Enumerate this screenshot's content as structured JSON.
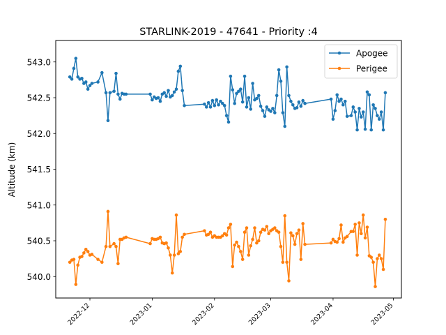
{
  "chart_data": {
    "type": "line",
    "title": "STARLINK-2019 - 47641 - Priority :4",
    "xlabel": "",
    "ylabel": "Altitude (km)",
    "x_type": "date",
    "xlim": [
      "2022-11-14",
      "2023-05-05"
    ],
    "ylim": [
      539.7,
      543.3
    ],
    "x_ticks": [
      "2022-12",
      "2023-01",
      "2023-02",
      "2023-03",
      "2023-04",
      "2023-05"
    ],
    "y_ticks": [
      540.0,
      540.5,
      541.0,
      541.5,
      542.0,
      542.5,
      543.0
    ],
    "y_tick_labels": [
      "540.0",
      "540.5",
      "541.0",
      "541.5",
      "542.0",
      "542.5",
      "543.0"
    ],
    "grid": false,
    "legend_position": "upper right",
    "series": [
      {
        "name": "Apogee",
        "color": "#1f77b4",
        "x": [
          "2022-11-21",
          "2022-11-22",
          "2022-11-23",
          "2022-11-24",
          "2022-11-25",
          "2022-11-26",
          "2022-11-27",
          "2022-11-28",
          "2022-11-29",
          "2022-11-30",
          "2022-12-01",
          "2022-12-02",
          "2022-12-05",
          "2022-12-07",
          "2022-12-09",
          "2022-12-10",
          "2022-12-11",
          "2022-12-13",
          "2022-12-14",
          "2022-12-15",
          "2022-12-16",
          "2022-12-17",
          "2022-12-18",
          "2022-12-19",
          "2022-12-31",
          "2023-01-01",
          "2023-01-02",
          "2023-01-03",
          "2023-01-04",
          "2023-01-05",
          "2023-01-06",
          "2023-01-07",
          "2023-01-08",
          "2023-01-09",
          "2023-01-10",
          "2023-01-11",
          "2023-01-12",
          "2023-01-13",
          "2023-01-14",
          "2023-01-15",
          "2023-01-16",
          "2023-01-17",
          "2023-01-27",
          "2023-01-28",
          "2023-01-29",
          "2023-01-30",
          "2023-01-31",
          "2023-02-01",
          "2023-02-02",
          "2023-02-03",
          "2023-02-04",
          "2023-02-05",
          "2023-02-06",
          "2023-02-07",
          "2023-02-08",
          "2023-02-09",
          "2023-02-10",
          "2023-02-11",
          "2023-02-12",
          "2023-02-13",
          "2023-02-14",
          "2023-02-15",
          "2023-02-16",
          "2023-02-17",
          "2023-02-18",
          "2023-02-19",
          "2023-02-20",
          "2023-02-21",
          "2023-02-22",
          "2023-02-23",
          "2023-02-24",
          "2023-02-25",
          "2023-02-26",
          "2023-02-27",
          "2023-02-28",
          "2023-03-01",
          "2023-03-02",
          "2023-03-03",
          "2023-03-04",
          "2023-03-05",
          "2023-03-06",
          "2023-03-07",
          "2023-03-08",
          "2023-03-09",
          "2023-03-10",
          "2023-03-11",
          "2023-03-12",
          "2023-03-13",
          "2023-03-14",
          "2023-03-15",
          "2023-03-16",
          "2023-03-17",
          "2023-03-18",
          "2023-03-31",
          "2023-04-01",
          "2023-04-02",
          "2023-04-03",
          "2023-04-04",
          "2023-04-05",
          "2023-04-06",
          "2023-04-07",
          "2023-04-08",
          "2023-04-10",
          "2023-04-11",
          "2023-04-12",
          "2023-04-13",
          "2023-04-14",
          "2023-04-15",
          "2023-04-16",
          "2023-04-17",
          "2023-04-18",
          "2023-04-19",
          "2023-04-20",
          "2023-04-21",
          "2023-04-22",
          "2023-04-23",
          "2023-04-24",
          "2023-04-25",
          "2023-04-26",
          "2023-04-27"
        ],
        "y": [
          542.79,
          542.76,
          542.91,
          543.05,
          542.79,
          542.76,
          542.77,
          542.7,
          542.72,
          542.62,
          542.67,
          542.7,
          542.72,
          542.85,
          542.57,
          542.18,
          542.57,
          542.59,
          542.84,
          542.55,
          542.48,
          542.56,
          542.55,
          542.55,
          542.55,
          542.47,
          542.51,
          542.49,
          542.5,
          542.45,
          542.55,
          542.57,
          542.52,
          542.6,
          542.51,
          542.53,
          542.58,
          542.62,
          542.87,
          542.94,
          542.6,
          542.39,
          542.41,
          542.37,
          542.43,
          542.37,
          542.46,
          542.39,
          542.47,
          542.4,
          542.45,
          542.42,
          542.39,
          542.25,
          542.16,
          542.8,
          542.61,
          542.42,
          542.56,
          542.59,
          542.62,
          542.44,
          542.8,
          542.37,
          542.5,
          542.34,
          542.7,
          542.47,
          542.49,
          542.53,
          542.38,
          542.32,
          542.24,
          542.37,
          542.33,
          542.31,
          542.35,
          542.29,
          542.53,
          542.89,
          542.73,
          542.29,
          542.1,
          542.93,
          542.53,
          542.45,
          542.4,
          542.35,
          542.36,
          542.44,
          542.38,
          542.46,
          542.42,
          542.48,
          542.2,
          542.32,
          542.54,
          542.45,
          542.48,
          542.4,
          542.45,
          542.24,
          542.25,
          542.37,
          542.3,
          542.05,
          542.35,
          542.23,
          542.3,
          542.06,
          542.58,
          542.54,
          542.05,
          542.4,
          542.35,
          542.25,
          542.2,
          542.3,
          542.05,
          542.57
        ]
      },
      {
        "name": "Perigee",
        "color": "#ff7f0e",
        "x": [
          "2022-11-21",
          "2022-11-22",
          "2022-11-23",
          "2022-11-24",
          "2022-11-25",
          "2022-11-26",
          "2022-11-27",
          "2022-11-28",
          "2022-11-29",
          "2022-11-30",
          "2022-12-01",
          "2022-12-02",
          "2022-12-05",
          "2022-12-07",
          "2022-12-09",
          "2022-12-10",
          "2022-12-11",
          "2022-12-13",
          "2022-12-14",
          "2022-12-15",
          "2022-12-16",
          "2022-12-17",
          "2022-12-18",
          "2022-12-19",
          "2022-12-31",
          "2023-01-01",
          "2023-01-02",
          "2023-01-03",
          "2023-01-04",
          "2023-01-05",
          "2023-01-06",
          "2023-01-07",
          "2023-01-08",
          "2023-01-09",
          "2023-01-10",
          "2023-01-11",
          "2023-01-12",
          "2023-01-13",
          "2023-01-14",
          "2023-01-15",
          "2023-01-16",
          "2023-01-17",
          "2023-01-27",
          "2023-01-28",
          "2023-01-29",
          "2023-01-30",
          "2023-01-31",
          "2023-02-01",
          "2023-02-02",
          "2023-02-03",
          "2023-02-04",
          "2023-02-05",
          "2023-02-06",
          "2023-02-07",
          "2023-02-08",
          "2023-02-09",
          "2023-02-10",
          "2023-02-11",
          "2023-02-12",
          "2023-02-13",
          "2023-02-14",
          "2023-02-15",
          "2023-02-16",
          "2023-02-17",
          "2023-02-18",
          "2023-02-19",
          "2023-02-20",
          "2023-02-21",
          "2023-02-22",
          "2023-02-23",
          "2023-02-24",
          "2023-02-25",
          "2023-02-26",
          "2023-02-27",
          "2023-02-28",
          "2023-03-01",
          "2023-03-02",
          "2023-03-03",
          "2023-03-04",
          "2023-03-05",
          "2023-03-06",
          "2023-03-07",
          "2023-03-08",
          "2023-03-09",
          "2023-03-10",
          "2023-03-11",
          "2023-03-12",
          "2023-03-13",
          "2023-03-14",
          "2023-03-15",
          "2023-03-16",
          "2023-03-17",
          "2023-03-18",
          "2023-03-31",
          "2023-04-01",
          "2023-04-02",
          "2023-04-03",
          "2023-04-04",
          "2023-04-05",
          "2023-04-06",
          "2023-04-07",
          "2023-04-08",
          "2023-04-10",
          "2023-04-11",
          "2023-04-12",
          "2023-04-13",
          "2023-04-14",
          "2023-04-15",
          "2023-04-16",
          "2023-04-17",
          "2023-04-18",
          "2023-04-19",
          "2023-04-20",
          "2023-04-21",
          "2023-04-22",
          "2023-04-23",
          "2023-04-24",
          "2023-04-25",
          "2023-04-26",
          "2023-04-27"
        ],
        "y": [
          540.2,
          540.23,
          540.24,
          539.89,
          540.16,
          540.27,
          540.28,
          540.33,
          540.38,
          540.35,
          540.3,
          540.31,
          540.24,
          540.2,
          540.42,
          540.91,
          540.42,
          540.46,
          540.42,
          540.18,
          540.52,
          540.52,
          540.54,
          540.55,
          540.46,
          540.53,
          540.52,
          540.52,
          540.53,
          540.55,
          540.47,
          540.46,
          540.47,
          540.4,
          540.3,
          540.05,
          540.3,
          540.86,
          540.32,
          540.35,
          540.55,
          540.59,
          540.64,
          540.58,
          540.59,
          540.62,
          540.55,
          540.57,
          540.55,
          540.55,
          540.55,
          540.57,
          540.6,
          540.58,
          540.68,
          540.73,
          540.14,
          540.44,
          540.48,
          540.42,
          540.35,
          540.24,
          540.62,
          540.68,
          540.3,
          540.43,
          540.52,
          540.68,
          540.47,
          540.5,
          540.62,
          540.66,
          540.65,
          540.7,
          540.6,
          540.64,
          540.66,
          540.68,
          540.64,
          540.62,
          540.42,
          540.2,
          540.85,
          540.2,
          539.94,
          540.61,
          540.57,
          540.45,
          540.6,
          540.65,
          540.24,
          540.74,
          540.45,
          540.47,
          540.52,
          540.49,
          540.48,
          540.53,
          540.72,
          540.48,
          540.54,
          540.56,
          540.63,
          540.63,
          540.73,
          540.3,
          540.75,
          540.6,
          540.86,
          540.54,
          540.69,
          540.29,
          540.27,
          540.2,
          539.86,
          540.25,
          540.3,
          540.25,
          540.1,
          540.8
        ]
      }
    ]
  }
}
